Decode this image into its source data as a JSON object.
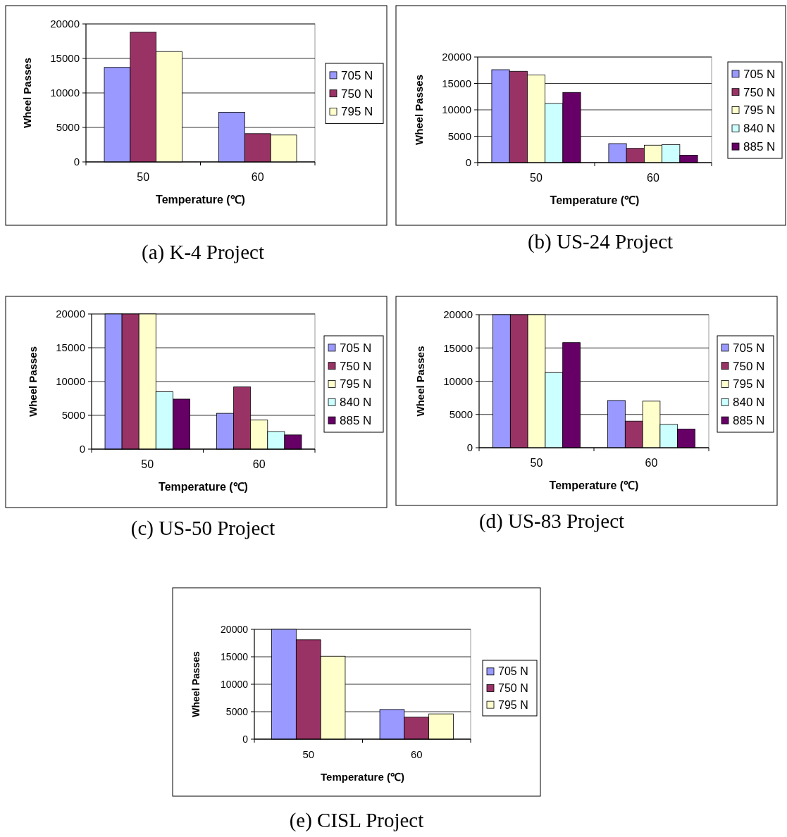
{
  "chart_data": [
    {
      "type": "bar",
      "xlabel": "Temperature (℃)",
      "ylabel": "Wheel Passes",
      "categories": [
        "50",
        "60"
      ],
      "ylim": [
        0,
        20000
      ],
      "yticks": [
        0,
        5000,
        10000,
        15000,
        20000
      ],
      "grid": "y",
      "legend": "right",
      "annotations": [
        "(a) K-4 Project"
      ],
      "series": [
        {
          "name": "705 N",
          "color": "#9999ff",
          "values": [
            13700,
            7200
          ]
        },
        {
          "name": "750 N",
          "color": "#993366",
          "values": [
            18800,
            4100
          ]
        },
        {
          "name": "795 N",
          "color": "#ffffcc",
          "values": [
            16000,
            3900
          ]
        }
      ]
    },
    {
      "type": "bar",
      "xlabel": "Temperature (℃)",
      "ylabel": "Wheel Passes",
      "categories": [
        "50",
        "60"
      ],
      "ylim": [
        0,
        20000
      ],
      "yticks": [
        0,
        5000,
        10000,
        15000,
        20000
      ],
      "grid": "y",
      "legend": "right",
      "annotations": [
        "(b) US-24 Project"
      ],
      "series": [
        {
          "name": "705 N",
          "color": "#9999ff",
          "values": [
            17600,
            3600
          ]
        },
        {
          "name": "750 N",
          "color": "#993366",
          "values": [
            17300,
            2700
          ]
        },
        {
          "name": "795 N",
          "color": "#ffffcc",
          "values": [
            16600,
            3300
          ]
        },
        {
          "name": "840 N",
          "color": "#ccffff",
          "values": [
            11200,
            3400
          ]
        },
        {
          "name": "885 N",
          "color": "#660066",
          "values": [
            13300,
            1400
          ]
        }
      ]
    },
    {
      "type": "bar",
      "xlabel": "Temperature (℃)",
      "ylabel": "Wheel Passes",
      "categories": [
        "50",
        "60"
      ],
      "ylim": [
        0,
        20000
      ],
      "yticks": [
        0,
        5000,
        10000,
        15000,
        20000
      ],
      "grid": "y",
      "legend": "right",
      "annotations": [
        "(c) US-50 Project"
      ],
      "series": [
        {
          "name": "705 N",
          "color": "#9999ff",
          "values": [
            20000,
            5300
          ]
        },
        {
          "name": "750 N",
          "color": "#993366",
          "values": [
            20000,
            9200
          ]
        },
        {
          "name": "795 N",
          "color": "#ffffcc",
          "values": [
            20000,
            4300
          ]
        },
        {
          "name": "840 N",
          "color": "#ccffff",
          "values": [
            8500,
            2600
          ]
        },
        {
          "name": "885 N",
          "color": "#660066",
          "values": [
            7400,
            2100
          ]
        }
      ]
    },
    {
      "type": "bar",
      "xlabel": "Temperature (℃)",
      "ylabel": "Wheel Passes",
      "categories": [
        "50",
        "60"
      ],
      "ylim": [
        0,
        20000
      ],
      "yticks": [
        0,
        5000,
        10000,
        15000,
        20000
      ],
      "grid": "y",
      "legend": "right",
      "annotations": [
        "(d) US-83 Project"
      ],
      "series": [
        {
          "name": "705 N",
          "color": "#9999ff",
          "values": [
            20000,
            7100
          ]
        },
        {
          "name": "750 N",
          "color": "#993366",
          "values": [
            20000,
            4000
          ]
        },
        {
          "name": "795 N",
          "color": "#ffffcc",
          "values": [
            20000,
            7000
          ]
        },
        {
          "name": "840 N",
          "color": "#ccffff",
          "values": [
            11300,
            3500
          ]
        },
        {
          "name": "885 N",
          "color": "#660066",
          "values": [
            15800,
            2800
          ]
        }
      ]
    },
    {
      "type": "bar",
      "xlabel": "Temperature (℃)",
      "ylabel": "Wheel Passes",
      "categories": [
        "50",
        "60"
      ],
      "ylim": [
        0,
        20000
      ],
      "yticks": [
        0,
        5000,
        10000,
        15000,
        20000
      ],
      "grid": "y",
      "legend": "right",
      "annotations": [
        "(e) CISL Project"
      ],
      "series": [
        {
          "name": "705 N",
          "color": "#9999ff",
          "values": [
            20000,
            5400
          ]
        },
        {
          "name": "750 N",
          "color": "#993366",
          "values": [
            18100,
            4000
          ]
        },
        {
          "name": "795 N",
          "color": "#ffffcc",
          "values": [
            15100,
            4600
          ]
        }
      ]
    }
  ]
}
